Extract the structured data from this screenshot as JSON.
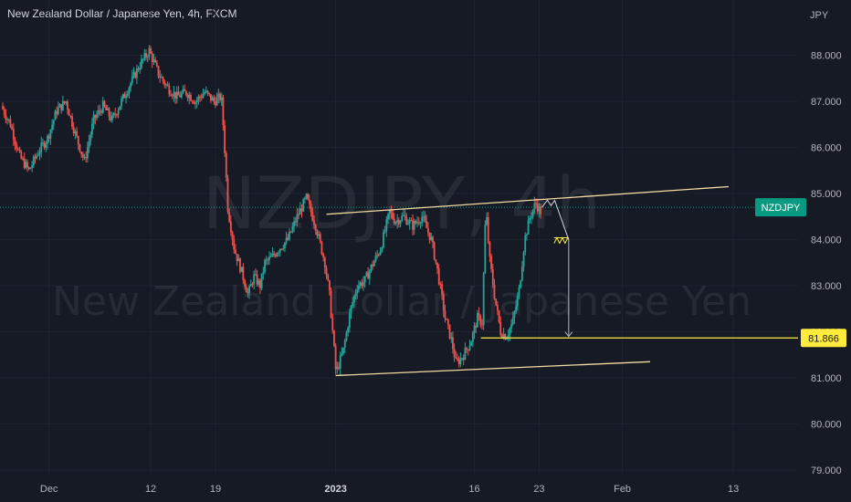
{
  "header": {
    "title": "New Zealand Dollar / Japanese Yen, 4h, FXCM"
  },
  "watermark": {
    "symbol": "NZDJPY, 4h",
    "name": "New Zealand Dollar / Japanese Yen"
  },
  "colors": {
    "background": "#161a25",
    "up": "#26a69a",
    "down": "#ef5350",
    "trendline": "#f3d9a1",
    "level": "#ffeb3b",
    "symbol_badge": "#089981",
    "current_price_line": "#089981"
  },
  "chart_data": {
    "type": "candlestick",
    "currency_label": "JPY",
    "y_ticks": [
      "88.000",
      "87.000",
      "86.000",
      "85.000",
      "84.000",
      "83.000",
      "82.000",
      "81.000",
      "80.000",
      "79.000"
    ],
    "ylim": [
      78.9,
      89.2
    ],
    "x_ticks": [
      {
        "label": "Dec",
        "bold": false,
        "day": 0
      },
      {
        "label": "12",
        "bold": false,
        "day": 11
      },
      {
        "label": "19",
        "bold": false,
        "day": 18
      },
      {
        "label": "2023",
        "bold": true,
        "day": 31
      },
      {
        "label": "16",
        "bold": false,
        "day": 46
      },
      {
        "label": "23",
        "bold": false,
        "day": 53
      },
      {
        "label": "Feb",
        "bold": false,
        "day": 62
      },
      {
        "label": "13",
        "bold": false,
        "day": 74
      }
    ],
    "xlim": [
      -5.3,
      81.0
    ],
    "symbol_badge": "NZDJPY",
    "current_price": 84.7,
    "level_label": "81.866",
    "level_value": 81.866,
    "price_path": [
      [
        -5.0,
        86.9
      ],
      [
        -4.0,
        86.5
      ],
      [
        -3.0,
        85.8
      ],
      [
        -2.0,
        85.5
      ],
      [
        -1.0,
        85.9
      ],
      [
        0.0,
        86.2
      ],
      [
        1.0,
        86.8
      ],
      [
        2.0,
        87.0
      ],
      [
        3.0,
        86.3
      ],
      [
        4.0,
        85.7
      ],
      [
        5.0,
        86.6
      ],
      [
        6.0,
        86.9
      ],
      [
        7.0,
        86.6
      ],
      [
        8.0,
        87.0
      ],
      [
        9.0,
        87.4
      ],
      [
        10.0,
        87.8
      ],
      [
        11.0,
        88.1
      ],
      [
        12.0,
        87.6
      ],
      [
        13.0,
        87.3
      ],
      [
        14.0,
        87.1
      ],
      [
        15.0,
        87.2
      ],
      [
        16.0,
        87.0
      ],
      [
        17.0,
        87.2
      ],
      [
        18.0,
        87.0
      ],
      [
        18.8,
        87.1
      ],
      [
        19.1,
        86.2
      ],
      [
        19.5,
        84.7
      ],
      [
        20.2,
        83.8
      ],
      [
        21.0,
        83.3
      ],
      [
        21.7,
        82.8
      ],
      [
        22.3,
        83.2
      ],
      [
        23.0,
        83.0
      ],
      [
        23.5,
        83.5
      ],
      [
        24.2,
        83.6
      ],
      [
        25.0,
        83.8
      ],
      [
        26.0,
        84.0
      ],
      [
        27.0,
        84.5
      ],
      [
        28.0,
        84.9
      ],
      [
        29.0,
        84.3
      ],
      [
        30.0,
        83.5
      ],
      [
        30.5,
        82.8
      ],
      [
        31.0,
        81.6
      ],
      [
        31.2,
        81.1
      ],
      [
        32.0,
        81.6
      ],
      [
        32.8,
        82.5
      ],
      [
        33.5,
        83.0
      ],
      [
        34.3,
        83.1
      ],
      [
        35.0,
        83.4
      ],
      [
        36.0,
        83.8
      ],
      [
        37.0,
        84.6
      ],
      [
        37.6,
        84.4
      ],
      [
        38.5,
        84.5
      ],
      [
        39.5,
        84.3
      ],
      [
        40.5,
        84.5
      ],
      [
        41.5,
        84.0
      ],
      [
        42.2,
        83.3
      ],
      [
        43.0,
        82.3
      ],
      [
        43.7,
        81.8
      ],
      [
        44.2,
        81.3
      ],
      [
        45.0,
        81.5
      ],
      [
        45.8,
        81.8
      ],
      [
        46.5,
        82.3
      ],
      [
        47.0,
        82.2
      ],
      [
        47.4,
        84.7
      ],
      [
        47.8,
        83.6
      ],
      [
        48.4,
        82.7
      ],
      [
        49.0,
        82.0
      ],
      [
        49.6,
        81.9
      ],
      [
        50.3,
        82.2
      ],
      [
        51.0,
        82.9
      ],
      [
        51.6,
        84.0
      ],
      [
        52.2,
        84.5
      ],
      [
        52.8,
        84.8
      ],
      [
        53.3,
        84.6
      ]
    ],
    "annotations": {
      "upper_trendline": {
        "from": [
          30.0,
          84.55
        ],
        "to": [
          73.5,
          85.15
        ]
      },
      "lower_trendline": {
        "from": [
          31.0,
          81.05
        ],
        "to": [
          65.0,
          81.35
        ]
      },
      "level_line": {
        "from": [
          46.7,
          81.866
        ],
        "to": [
          81.0,
          81.866
        ]
      },
      "projection_arrow": {
        "from": [
          56.2,
          84.0
        ],
        "to": [
          56.2,
          81.9
        ]
      }
    }
  }
}
